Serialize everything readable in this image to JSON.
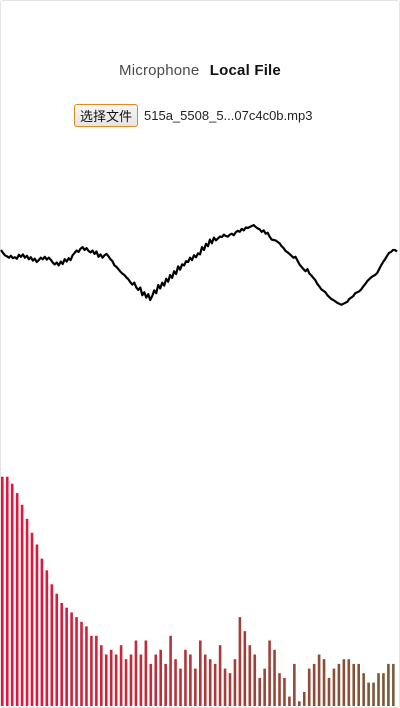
{
  "tabs": [
    {
      "label": "Microphone",
      "active": false
    },
    {
      "label": "Local File",
      "active": true
    }
  ],
  "file_input": {
    "button_label": "选择文件",
    "file_name": "515a_5508_5...07c4c0b.mp3"
  },
  "colors": {
    "waveform": "#000000",
    "bar_start": "#e8123c",
    "bar_end": "#7a5a36",
    "file_button_border": "#e08a1e"
  },
  "waveform": {
    "samples": [
      0.52,
      0.46,
      0.41,
      0.39,
      0.36,
      0.4,
      0.35,
      0.37,
      0.34,
      0.42,
      0.38,
      0.43,
      0.36,
      0.4,
      0.33,
      0.37,
      0.3,
      0.34,
      0.27,
      0.31,
      0.36,
      0.33,
      0.38,
      0.32,
      0.36,
      0.32,
      0.26,
      0.22,
      0.26,
      0.2,
      0.28,
      0.23,
      0.33,
      0.28,
      0.35,
      0.31,
      0.41,
      0.46,
      0.51,
      0.48,
      0.55,
      0.58,
      0.52,
      0.56,
      0.5,
      0.47,
      0.51,
      0.44,
      0.49,
      0.38,
      0.43,
      0.36,
      0.41,
      0.44,
      0.39,
      0.33,
      0.29,
      0.2,
      0.17,
      0.12,
      0.07,
      0.03,
      0.0,
      -0.05,
      -0.09,
      -0.15,
      -0.2,
      -0.16,
      -0.26,
      -0.31,
      -0.26,
      -0.42,
      -0.36,
      -0.47,
      -0.4,
      -0.52,
      -0.44,
      -0.32,
      -0.38,
      -0.21,
      -0.28,
      -0.16,
      -0.22,
      -0.08,
      -0.14,
      0.0,
      -0.06,
      0.08,
      0.02,
      0.18,
      0.11,
      0.22,
      0.2,
      0.29,
      0.27,
      0.36,
      0.31,
      0.41,
      0.37,
      0.45,
      0.43,
      0.58,
      0.52,
      0.65,
      0.6,
      0.74,
      0.66,
      0.78,
      0.72,
      0.76,
      0.8,
      0.79,
      0.84,
      0.81,
      0.8,
      0.84,
      0.86,
      0.83,
      0.89,
      0.92,
      0.9,
      0.96,
      0.93,
      0.99,
      0.98,
      1.0,
      1.02,
      1.04,
      1.0,
      0.97,
      0.95,
      0.9,
      0.93,
      0.86,
      0.88,
      0.8,
      0.74,
      0.73,
      0.72,
      0.69,
      0.66,
      0.6,
      0.56,
      0.5,
      0.47,
      0.44,
      0.4,
      0.36,
      0.38,
      0.3,
      0.22,
      0.17,
      0.12,
      0.08,
      0.12,
      0.03,
      -0.01,
      -0.06,
      -0.11,
      -0.19,
      -0.24,
      -0.3,
      -0.33,
      -0.36,
      -0.42,
      -0.46,
      -0.5,
      -0.52,
      -0.55,
      -0.58,
      -0.6,
      -0.62,
      -0.6,
      -0.58,
      -0.56,
      -0.5,
      -0.47,
      -0.44,
      -0.38,
      -0.36,
      -0.34,
      -0.3,
      -0.24,
      -0.19,
      -0.13,
      -0.09,
      -0.05,
      -0.02,
      0.0,
      0.04,
      0.12,
      0.2,
      0.27,
      0.33,
      0.4,
      0.46,
      0.48,
      0.52,
      0.52,
      0.49
    ]
  },
  "spectrum": {
    "levels": [
      0.98,
      0.98,
      0.95,
      0.91,
      0.86,
      0.8,
      0.74,
      0.69,
      0.63,
      0.58,
      0.52,
      0.48,
      0.44,
      0.42,
      0.4,
      0.38,
      0.36,
      0.34,
      0.3,
      0.3,
      0.26,
      0.22,
      0.24,
      0.22,
      0.26,
      0.2,
      0.22,
      0.28,
      0.22,
      0.28,
      0.18,
      0.22,
      0.24,
      0.18,
      0.3,
      0.2,
      0.16,
      0.24,
      0.22,
      0.16,
      0.28,
      0.22,
      0.2,
      0.18,
      0.26,
      0.16,
      0.14,
      0.2,
      0.38,
      0.32,
      0.26,
      0.22,
      0.12,
      0.16,
      0.28,
      0.24,
      0.14,
      0.12,
      0.04,
      0.18,
      0.02,
      0.06,
      0.16,
      0.18,
      0.22,
      0.2,
      0.12,
      0.16,
      0.18,
      0.2,
      0.2,
      0.18,
      0.18,
      0.14,
      0.1,
      0.1,
      0.14,
      0.14,
      0.18,
      0.18
    ]
  }
}
